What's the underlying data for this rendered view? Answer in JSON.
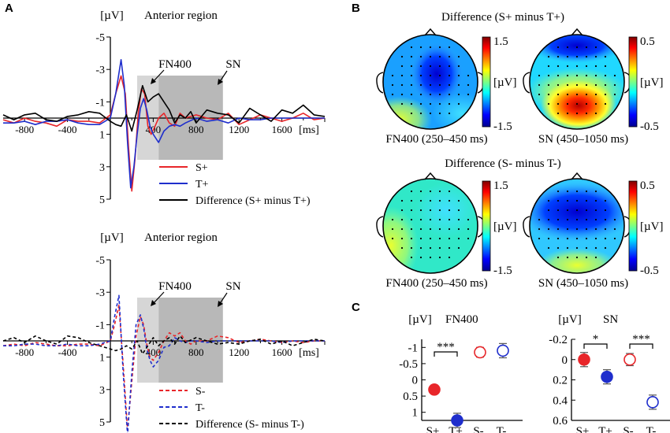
{
  "panels": {
    "a": "A",
    "b": "B",
    "c": "C"
  },
  "chart_data": [
    {
      "id": "erp-top",
      "type": "line",
      "title": "Anterior region",
      "unit_label": "[µV]",
      "xlabel": "[ms]",
      "xlim": [
        -1000,
        2000
      ],
      "ylim": [
        5,
        -5
      ],
      "x_ticks": [
        -800,
        -400,
        400,
        800,
        1200,
        1600
      ],
      "y_ticks": [
        -5,
        -3,
        -1,
        1,
        3,
        5
      ],
      "windows": [
        {
          "label": "FN400",
          "range": [
            250,
            450
          ]
        },
        {
          "label": "SN",
          "range": [
            450,
            1050
          ]
        }
      ],
      "legend": [
        "S+",
        "T+",
        "Difference (S+ minus T+)"
      ],
      "series": [
        {
          "name": "S+",
          "color": "#e8262a",
          "dash": "solid",
          "x": [
            -1000,
            -900,
            -800,
            -700,
            -600,
            -500,
            -400,
            -300,
            -200,
            -100,
            0,
            50,
            100,
            140,
            170,
            200,
            230,
            260,
            290,
            320,
            350,
            380,
            410,
            450,
            500,
            550,
            600,
            650,
            700,
            800,
            900,
            1000,
            1100,
            1200,
            1300,
            1400,
            1500,
            1600,
            1700,
            1800,
            1900,
            2000
          ],
          "y": [
            0.1,
            0.3,
            0,
            0.2,
            0.3,
            0.5,
            0.1,
            0.2,
            0.2,
            0.3,
            -0.2,
            -1.5,
            -2.6,
            -1.5,
            1.8,
            4.5,
            2.5,
            -0.3,
            -1.8,
            -1.5,
            0.5,
            1.0,
            0.6,
            0,
            -0.3,
            0.3,
            0.5,
            -0.3,
            0,
            -0.2,
            0,
            0.1,
            -0.3,
            0.4,
            0.1,
            -0.2,
            0,
            0.2,
            0,
            -0.3,
            0.1,
            0
          ]
        },
        {
          "name": "T+",
          "color": "#1f2ecc",
          "dash": "solid",
          "x": [
            -1000,
            -900,
            -800,
            -700,
            -600,
            -500,
            -400,
            -300,
            -200,
            -100,
            0,
            50,
            100,
            130,
            160,
            190,
            220,
            250,
            280,
            310,
            340,
            370,
            400,
            450,
            500,
            550,
            600,
            650,
            700,
            800,
            900,
            1000,
            1100,
            1200,
            1300,
            1400,
            1500,
            1600,
            1700,
            1800,
            1900,
            2000
          ],
          "y": [
            0.3,
            0.3,
            0.2,
            0.4,
            0.2,
            0.2,
            0.1,
            0.3,
            0.4,
            0.4,
            0,
            -1.5,
            -3.6,
            -2.0,
            1.5,
            4.3,
            3.0,
            1.0,
            -0.6,
            -1.2,
            -0.5,
            0.5,
            1.0,
            1.5,
            0.8,
            0.5,
            0.4,
            0.5,
            0.3,
            0,
            0.2,
            0.1,
            0.3,
            0,
            0.1,
            0.1,
            0,
            0,
            0,
            0,
            0,
            0
          ]
        },
        {
          "name": "Difference (S+ minus T+)",
          "color": "#000000",
          "dash": "solid",
          "x": [
            -1000,
            -900,
            -800,
            -700,
            -600,
            -500,
            -400,
            -300,
            -200,
            -100,
            0,
            50,
            100,
            150,
            200,
            250,
            300,
            350,
            400,
            450,
            500,
            550,
            600,
            650,
            700,
            750,
            800,
            900,
            1000,
            1100,
            1200,
            1300,
            1400,
            1500,
            1600,
            1700,
            1800,
            1900,
            2000
          ],
          "y": [
            -0.2,
            0.1,
            -0.2,
            -0.3,
            0.1,
            0.2,
            -0.1,
            -0.2,
            -0.4,
            -0.3,
            0.2,
            0.4,
            0.5,
            -0.2,
            0.8,
            -0.5,
            -2.0,
            -1.0,
            -1.3,
            -1.5,
            -1.0,
            -0.5,
            0.3,
            -0.2,
            0,
            -0.4,
            0.3,
            -0.5,
            -0.3,
            -0.2,
            0.3,
            -0.6,
            -0.2,
            0.2,
            -0.5,
            -0.3,
            -0.8,
            -0.2,
            -0.1
          ]
        }
      ]
    },
    {
      "id": "erp-bottom",
      "type": "line",
      "title": "Anterior region",
      "unit_label": "[µV]",
      "xlabel": "[ms]",
      "xlim": [
        -1000,
        2000
      ],
      "ylim": [
        5,
        -5
      ],
      "x_ticks": [
        -800,
        -400,
        400,
        800,
        1200,
        1600
      ],
      "y_ticks": [
        -5,
        -3,
        -1,
        1,
        3,
        5
      ],
      "windows": [
        {
          "label": "FN400",
          "range": [
            250,
            450
          ]
        },
        {
          "label": "SN",
          "range": [
            450,
            1050
          ]
        }
      ],
      "legend": [
        "S-",
        "T-",
        "Difference (S- minus T-)"
      ],
      "series": [
        {
          "name": "S-",
          "color": "#e8262a",
          "dash": "dashed",
          "x": [
            -1000,
            -900,
            -800,
            -700,
            -600,
            -500,
            -400,
            -300,
            -200,
            -100,
            0,
            40,
            80,
            120,
            160,
            200,
            240,
            280,
            310,
            340,
            370,
            400,
            450,
            500,
            550,
            600,
            650,
            700,
            750,
            800,
            900,
            1000,
            1100,
            1200,
            1300,
            1400,
            1500,
            1600,
            1700,
            1800,
            1900,
            2000
          ],
          "y": [
            0.3,
            0.2,
            0.3,
            0.1,
            0.2,
            0.3,
            0.3,
            0.2,
            0.2,
            0.3,
            0,
            -1.0,
            -2.2,
            1.5,
            5.5,
            2.5,
            -0.3,
            -1.5,
            -1.0,
            0.2,
            1.0,
            1.2,
            0.7,
            0,
            -0.5,
            -0.3,
            -0.5,
            0,
            0.2,
            0,
            0,
            -0.3,
            -0.2,
            0.1,
            0,
            -0.1,
            0,
            0.1,
            0,
            0.1,
            0,
            0
          ]
        },
        {
          "name": "T-",
          "color": "#1f2ecc",
          "dash": "dashed",
          "x": [
            -1000,
            -900,
            -800,
            -700,
            -600,
            -500,
            -400,
            -300,
            -200,
            -100,
            0,
            40,
            80,
            120,
            160,
            200,
            240,
            280,
            310,
            340,
            370,
            400,
            450,
            500,
            550,
            600,
            650,
            700,
            750,
            800,
            900,
            1000,
            1100,
            1200,
            1300,
            1400,
            1500,
            1600,
            1700,
            1800,
            1900,
            2000
          ],
          "y": [
            0.3,
            0.3,
            0.2,
            0.2,
            0.3,
            0.3,
            0.2,
            0.3,
            0.3,
            0.2,
            0,
            -1.5,
            -2.8,
            2.0,
            5.8,
            2.0,
            -1.0,
            -1.6,
            -0.8,
            0.5,
            1.2,
            1.6,
            1.2,
            0.4,
            0.3,
            -0.2,
            0,
            0.1,
            0,
            0,
            0.1,
            0,
            0,
            0,
            0,
            0,
            0,
            0.1,
            0,
            0,
            0,
            0
          ]
        },
        {
          "name": "Difference (S- minus T-)",
          "color": "#000000",
          "dash": "dashed",
          "x": [
            -1000,
            -900,
            -800,
            -700,
            -600,
            -500,
            -400,
            -300,
            -200,
            -100,
            0,
            50,
            100,
            150,
            200,
            250,
            300,
            350,
            400,
            450,
            500,
            550,
            600,
            650,
            700,
            800,
            900,
            1000,
            1100,
            1200,
            1300,
            1400,
            1500,
            1600,
            1700,
            1800,
            1900,
            2000
          ],
          "y": [
            0,
            -0.2,
            0.1,
            -0.3,
            0,
            0.2,
            -0.3,
            -0.2,
            0.1,
            0.3,
            0.5,
            0.6,
            0.5,
            0.3,
            0.5,
            0,
            0.8,
            0.3,
            -0.2,
            0.3,
            0,
            -0.2,
            0.2,
            -0.3,
            0.1,
            -0.2,
            0,
            0.2,
            0.1,
            0.2,
            0,
            -0.1,
            0.2,
            0,
            0.3,
            0.1,
            -0.1,
            0
          ]
        }
      ]
    },
    {
      "id": "topomaps",
      "type": "heatmap",
      "groups": [
        {
          "title": "Difference (S+ minus T+)",
          "maps": [
            {
              "caption": "FN400 (250–450 ms)",
              "colorbar": {
                "max": "1.5",
                "unit": "[µV]",
                "min": "-1.5"
              }
            },
            {
              "caption": "SN (450–1050 ms)",
              "colorbar": {
                "max": "0.5",
                "unit": "[µV]",
                "min": "-0.5"
              }
            }
          ]
        },
        {
          "title": "Difference (S- minus T-)",
          "maps": [
            {
              "caption": "FN400 (250–450 ms)",
              "colorbar": {
                "max": "1.5",
                "unit": "[µV]",
                "min": "-1.5"
              }
            },
            {
              "caption": "SN (450–1050 ms)",
              "colorbar": {
                "max": "0.5",
                "unit": "[µV]",
                "min": "-0.5"
              }
            }
          ]
        }
      ]
    },
    {
      "id": "means-fn400",
      "type": "scatter",
      "title": "FN400",
      "unit_label": "[µV]",
      "categories": [
        "S+",
        "T+",
        "S-",
        "T-"
      ],
      "ylim": [
        1.25,
        -1.25
      ],
      "y_ticks": [
        "-1",
        "-0.5",
        "0",
        "0.5",
        "1"
      ],
      "values": [
        0.3,
        1.25,
        -0.85,
        -0.9
      ],
      "errors": [
        0.12,
        0.22,
        0.15,
        0.22
      ],
      "filled": [
        true,
        true,
        false,
        false
      ],
      "colors": [
        "#e8262a",
        "#1f2ecc",
        "#e8262a",
        "#1f2ecc"
      ],
      "significance": [
        {
          "pair": [
            0,
            1
          ],
          "label": "***"
        }
      ]
    },
    {
      "id": "means-sn",
      "type": "scatter",
      "title": "SN",
      "unit_label": "[µV]",
      "categories": [
        "S+",
        "T+",
        "S-",
        "T-"
      ],
      "ylim": [
        0.6,
        -0.2
      ],
      "y_ticks": [
        "-0.2",
        "0",
        "0.2",
        "0.4",
        "0.6"
      ],
      "values": [
        0,
        0.17,
        0,
        0.42
      ],
      "errors": [
        0.07,
        0.07,
        0.06,
        0.07
      ],
      "filled": [
        true,
        true,
        false,
        false
      ],
      "colors": [
        "#e8262a",
        "#1f2ecc",
        "#e8262a",
        "#1f2ecc"
      ],
      "significance": [
        {
          "pair": [
            0,
            1
          ],
          "label": "*"
        },
        {
          "pair": [
            2,
            3
          ],
          "label": "***"
        }
      ]
    }
  ]
}
